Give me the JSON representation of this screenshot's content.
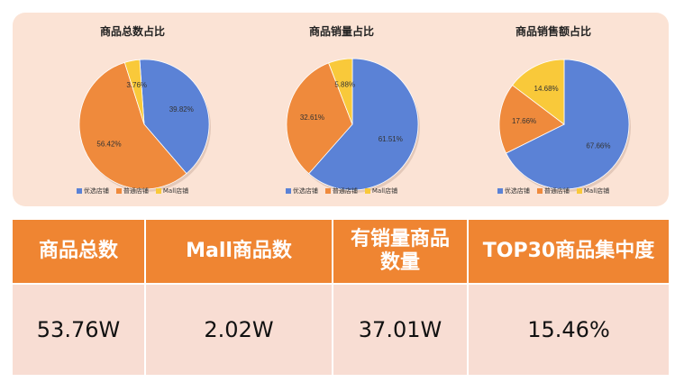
{
  "colors": {
    "blue": "#5b82d6",
    "orange": "#ef8a3c",
    "yellow": "#f9c93a",
    "header": "#ef8532",
    "value_bg": "#f8ddd3",
    "panel_bg": "#fbe3d5"
  },
  "legend": [
    "优选店铺",
    "普通店铺",
    "Mall店铺"
  ],
  "chart_data": [
    {
      "type": "pie",
      "title": "商品总数占比",
      "series": [
        {
          "name": "优选店铺",
          "value": 39.82,
          "label": "39.82%"
        },
        {
          "name": "普通店铺",
          "value": 56.42,
          "label": "56.42%"
        },
        {
          "name": "Mall店铺",
          "value": 3.76,
          "label": "3.76%"
        }
      ]
    },
    {
      "type": "pie",
      "title": "商品销量占比",
      "series": [
        {
          "name": "优选店铺",
          "value": 61.51,
          "label": "61.51%"
        },
        {
          "name": "普通店铺",
          "value": 32.61,
          "label": "32.61%"
        },
        {
          "name": "Mall店铺",
          "value": 5.88,
          "label": "5.88%"
        }
      ]
    },
    {
      "type": "pie",
      "title": "商品销售额占比",
      "series": [
        {
          "name": "优选店铺",
          "value": 67.66,
          "label": "67.66%"
        },
        {
          "name": "普通店铺",
          "value": 17.66,
          "label": "17.66%"
        },
        {
          "name": "Mall店铺",
          "value": 14.68,
          "label": "14.68%"
        }
      ]
    }
  ],
  "stats": {
    "headers": [
      "商品总数",
      "Mall商品数",
      "有销量商品数量",
      "TOP30商品集中度"
    ],
    "header_lines": [
      [
        "商品总数"
      ],
      [
        "Mall商品数"
      ],
      [
        "有销量商品",
        "数量"
      ],
      [
        "TOP30商品集中度"
      ]
    ],
    "values": [
      "53.76W",
      "2.02W",
      "37.01W",
      "15.46%"
    ]
  }
}
